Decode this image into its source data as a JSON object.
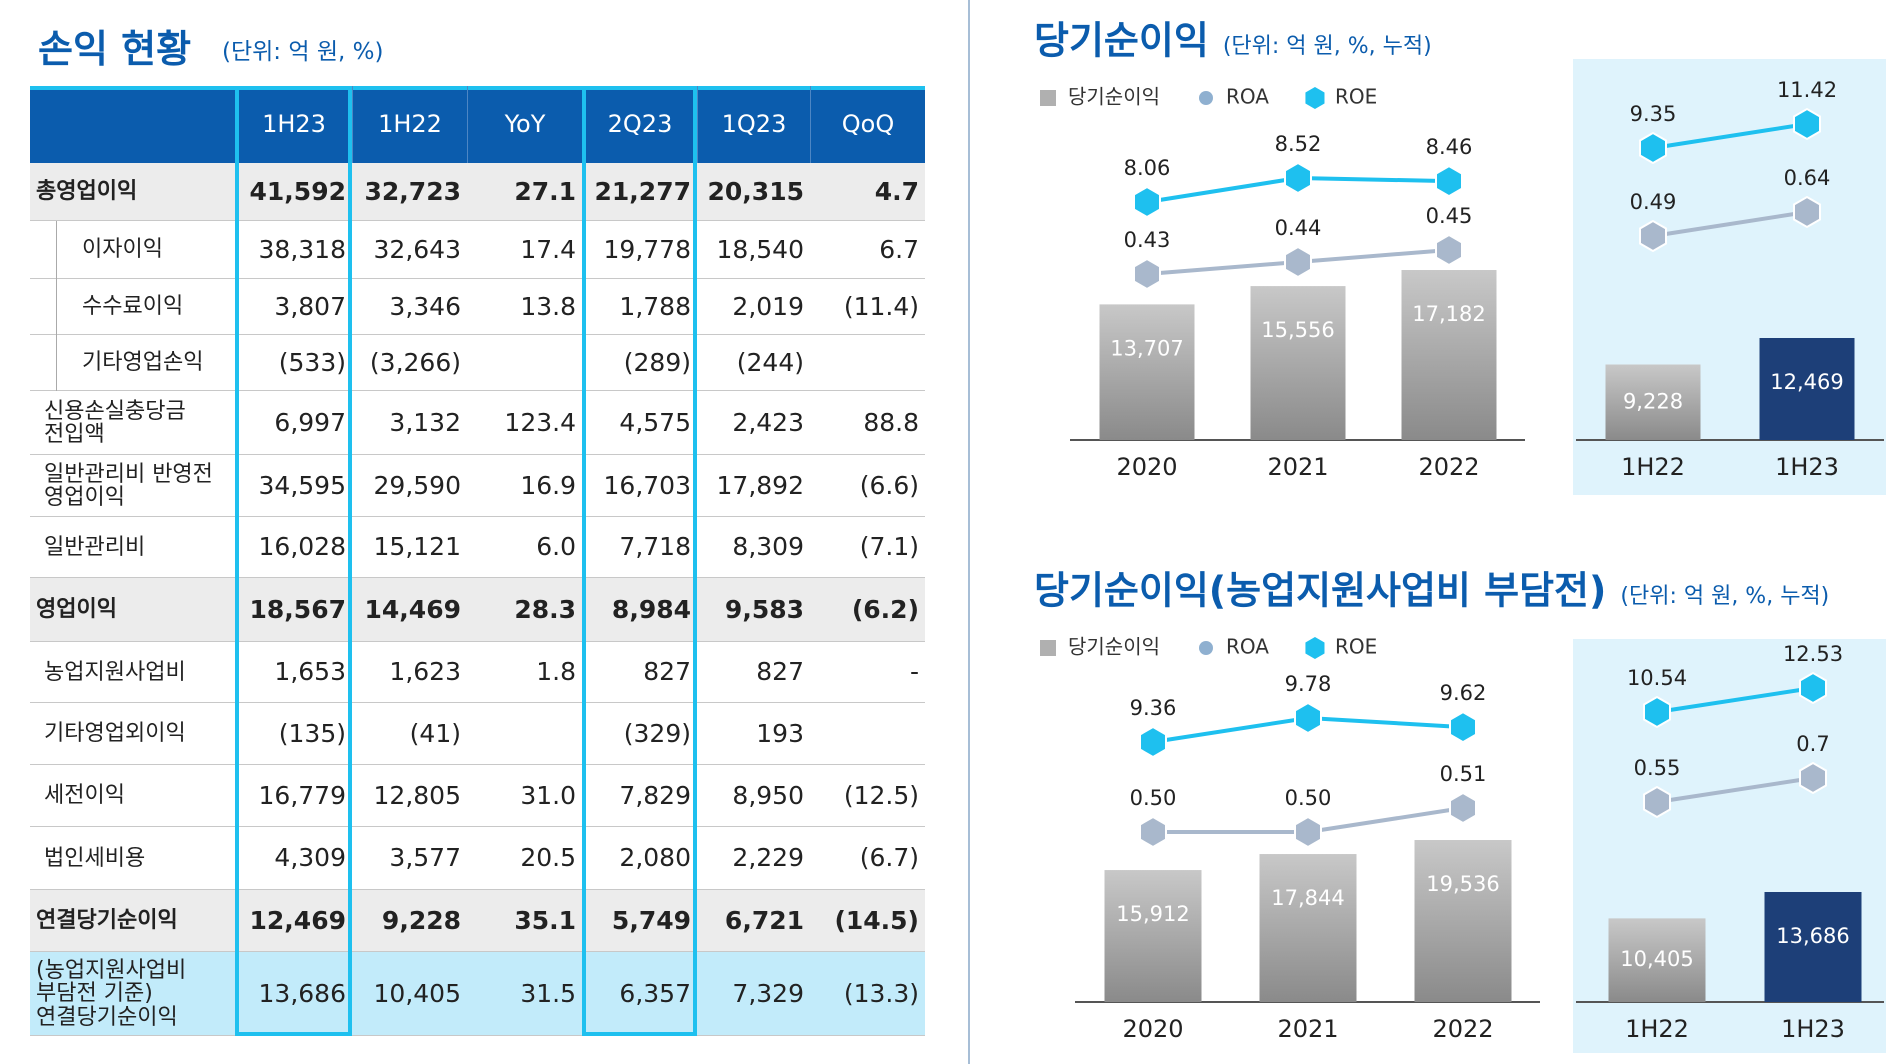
{
  "left": {
    "title": "손익 현황",
    "unit": "(단위: 억 원, %)",
    "table": {
      "header": [
        "1H23",
        "1H22",
        "YoY",
        "2Q23",
        "1Q23",
        "QoQ"
      ],
      "rows": [
        {
          "label": "총영업이익",
          "cells": [
            "41,592",
            "32,723",
            "27.1",
            "21,277",
            "20,315",
            "4.7"
          ]
        },
        {
          "label": "이자이익",
          "cells": [
            "38,318",
            "32,643",
            "17.4",
            "19,778",
            "18,540",
            "6.7"
          ]
        },
        {
          "label": "수수료이익",
          "cells": [
            "3,807",
            "3,346",
            "13.8",
            "1,788",
            "2,019",
            "(11.4)"
          ]
        },
        {
          "label": "기타영업손익",
          "cells": [
            "(533)",
            "(3,266)",
            null,
            "(289)",
            "(244)",
            null
          ]
        },
        {
          "label": "신용손실충당금\n전입액",
          "cells": [
            "6,997",
            "3,132",
            "123.4",
            "4,575",
            "2,423",
            "88.8"
          ]
        },
        {
          "label": "일반관리비 반영전\n영업이익",
          "cells": [
            "34,595",
            "29,590",
            "16.9",
            "16,703",
            "17,892",
            "(6.6)"
          ]
        },
        {
          "label": "일반관리비",
          "cells": [
            "16,028",
            "15,121",
            "6.0",
            "7,718",
            "8,309",
            "(7.1)"
          ]
        },
        {
          "label": "영업이익",
          "cells": [
            "18,567",
            "14,469",
            "28.3",
            "8,984",
            "9,583",
            "(6.2)"
          ]
        },
        {
          "label": "농업지원사업비",
          "cells": [
            "1,653",
            "1,623",
            "1.8",
            "827",
            "827",
            "-"
          ]
        },
        {
          "label": "기타영업외이익",
          "cells": [
            "(135)",
            "(41)",
            null,
            "(329)",
            "193",
            null
          ]
        },
        {
          "label": "세전이익",
          "cells": [
            "16,779",
            "12,805",
            "31.0",
            "7,829",
            "8,950",
            "(12.5)"
          ]
        },
        {
          "label": "법인세비용",
          "cells": [
            "4,309",
            "3,577",
            "20.5",
            "2,080",
            "2,229",
            "(6.7)"
          ]
        },
        {
          "label": "연결당기순이익",
          "cells": [
            "12,469",
            "9,228",
            "35.1",
            "5,749",
            "6,721",
            "(14.5)"
          ]
        },
        {
          "label": "(농업지원사업비\n부담전 기준)\n연결당기순이익",
          "cells": [
            "13,686",
            "10,405",
            "31.5",
            "6,357",
            "7,329",
            "(13.3)"
          ]
        }
      ]
    }
  },
  "chart_data": [
    {
      "type": "bar_line",
      "title": "당기순이익",
      "subtitle": "(단위: 억 원, %, 누적)",
      "categories": [
        "2020",
        "2021",
        "2022"
      ],
      "series": [
        {
          "name": "당기순이익",
          "type": "bar",
          "color": "#8a8a8a",
          "values": [
            13707,
            15556,
            17182
          ],
          "value_labels": [
            "13,707",
            "15,556",
            "17,182"
          ]
        },
        {
          "name": "ROA",
          "type": "line",
          "color": "#a9b8cc",
          "values": [
            0.43,
            0.44,
            0.45
          ]
        },
        {
          "name": "ROE",
          "type": "line",
          "color": "#1ec0ef",
          "values": [
            8.06,
            8.52,
            8.46
          ]
        }
      ]
    },
    {
      "type": "bar_line",
      "categories": [
        "1H22",
        "1H23"
      ],
      "series": [
        {
          "type": "bar",
          "colors": [
            "#8a8a8a",
            "#1d3f78"
          ],
          "values": [
            9228,
            12469
          ],
          "value_labels": [
            "9,228",
            "12,469"
          ]
        },
        {
          "type": "line",
          "color": "#a9b8cc",
          "values": [
            0.49,
            0.64
          ]
        },
        {
          "type": "line",
          "color": "#1ec0ef",
          "values": [
            9.35,
            11.42
          ]
        }
      ]
    },
    {
      "type": "bar_line",
      "title": "당기순이익(농업지원사업비 부담전)",
      "subtitle": "(단위: 억 원, %, 누적)",
      "categories": [
        "2020",
        "2021",
        "2022"
      ],
      "series": [
        {
          "name": "당기순이익",
          "type": "bar",
          "color": "#8a8a8a",
          "values": [
            15912,
            17844,
            19536
          ],
          "value_labels": [
            "15,912",
            "17,844",
            "19,536"
          ]
        },
        {
          "name": "ROA",
          "type": "line",
          "color": "#a9b8cc",
          "values": [
            0.5,
            0.5,
            0.51
          ],
          "value_labels": [
            "0.50",
            "0.50",
            "0.51"
          ]
        },
        {
          "name": "ROE",
          "type": "line",
          "color": "#1ec0ef",
          "values": [
            9.36,
            9.78,
            9.62
          ]
        }
      ]
    },
    {
      "type": "bar_line",
      "categories": [
        "1H22",
        "1H23"
      ],
      "series": [
        {
          "type": "bar",
          "colors": [
            "#8a8a8a",
            "#1d3f78"
          ],
          "values": [
            10405,
            13686
          ],
          "value_labels": [
            "10,405",
            "13,686"
          ]
        },
        {
          "type": "line",
          "color": "#a9b8cc",
          "values": [
            0.55,
            0.7
          ]
        },
        {
          "type": "line",
          "color": "#1ec0ef",
          "values": [
            10.54,
            12.53
          ]
        }
      ]
    }
  ]
}
